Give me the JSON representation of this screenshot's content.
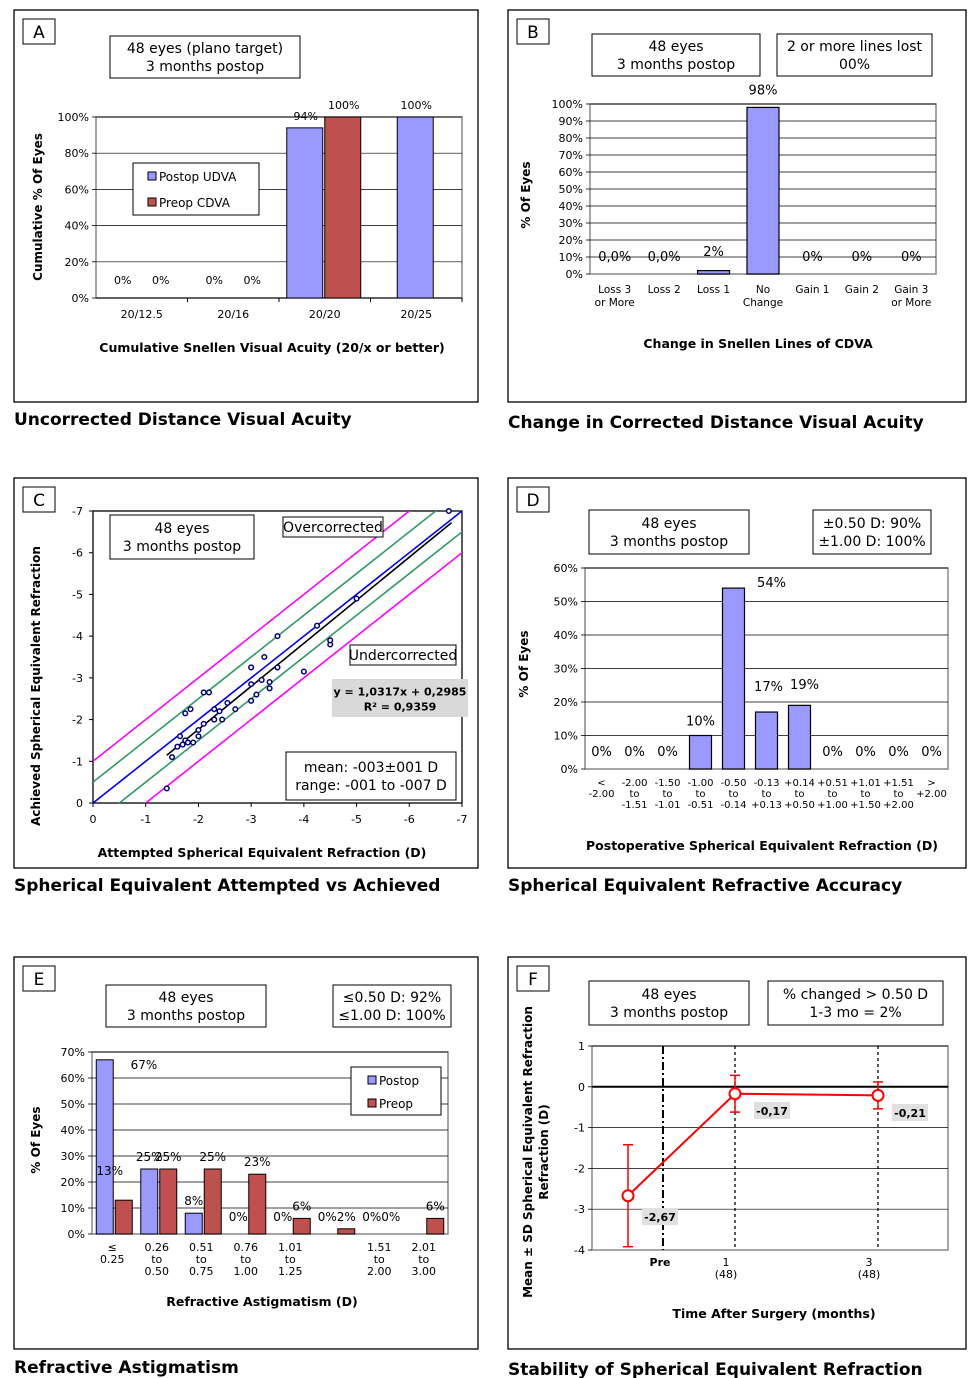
{
  "colors": {
    "blue": "#9999ff",
    "red": "#c0504d",
    "magenta": "#ff00ff",
    "green": "#339966",
    "line_blue": "#0000ff",
    "red_line": "#ff0000"
  },
  "panels": [
    {
      "letter": "A",
      "caption": "Uncorrected Distance Visual Acuity",
      "boxes": [
        {
          "lines": [
            "48 eyes (plano target)",
            "3 months postop"
          ]
        }
      ],
      "legend": [
        "Postop UDVA",
        "Preop CDVA"
      ]
    },
    {
      "letter": "B",
      "caption": "Change in Corrected Distance Visual Acuity",
      "boxes": [
        {
          "lines": [
            "48 eyes",
            "3 months postop"
          ]
        },
        {
          "lines": [
            "2 or more lines lost",
            "00%"
          ]
        }
      ]
    },
    {
      "letter": "C",
      "caption": "Spherical Equivalent Attempted vs Achieved",
      "boxes": [
        {
          "lines": [
            "48 eyes",
            "3 months postop"
          ]
        },
        {
          "lines": [
            "Overcorrected"
          ]
        },
        {
          "lines": [
            "Undercorrected"
          ]
        },
        {
          "lines": [
            "mean: -003±001 D",
            "range: -001 to -007 D"
          ]
        },
        {
          "lines": [
            "y = 1,0317x + 0,2985",
            "R² = 0,9359"
          ]
        }
      ]
    },
    {
      "letter": "D",
      "caption": "Spherical Equivalent Refractive Accuracy",
      "boxes": [
        {
          "lines": [
            "48 eyes",
            "3 months postop"
          ]
        },
        {
          "lines": [
            "±0.50 D: 90%",
            "±1.00 D: 100%"
          ]
        }
      ]
    },
    {
      "letter": "E",
      "caption": "Refractive Astigmatism",
      "boxes": [
        {
          "lines": [
            "48 eyes",
            "3 months postop"
          ]
        },
        {
          "lines": [
            "≤0.50 D: 92%",
            "≤1.00 D: 100%"
          ]
        }
      ],
      "legend": [
        "Postop",
        "Preop"
      ]
    },
    {
      "letter": "F",
      "caption": "Stability of Spherical Equivalent Refraction",
      "boxes": [
        {
          "lines": [
            "48 eyes",
            "3 months postop"
          ]
        },
        {
          "lines": [
            "% changed > 0.50 D",
            "1-3 mo = 2%"
          ]
        }
      ]
    }
  ],
  "chart_data": [
    {
      "type": "bar",
      "ylabel": "Cumulative % Of Eyes",
      "xlabel": "Cumulative Snellen Visual Acuity (20/x or better)",
      "ylim": [
        0,
        100
      ],
      "yticks": [
        "0%",
        "20%",
        "40%",
        "60%",
        "80%",
        "100%"
      ],
      "categories": [
        "20/12.5",
        "20/16",
        "20/20",
        "20/25"
      ],
      "series": [
        {
          "name": "Postop UDVA",
          "values": [
            0,
            0,
            94,
            100
          ],
          "labels": [
            "0%",
            "0%",
            "94%",
            "100%"
          ]
        },
        {
          "name": "Preop CDVA",
          "values": [
            0,
            0,
            100,
            null
          ],
          "labels": [
            "0%",
            "0%",
            "100%",
            ""
          ]
        }
      ]
    },
    {
      "type": "bar",
      "ylabel": "% Of Eyes",
      "xlabel": "Change in Snellen Lines of CDVA",
      "ylim": [
        0,
        100
      ],
      "yticks": [
        "0%",
        "10%",
        "20%",
        "30%",
        "40%",
        "50%",
        "60%",
        "70%",
        "80%",
        "90%",
        "100%"
      ],
      "categories": [
        [
          "Loss 3",
          "or More"
        ],
        [
          "Loss 2"
        ],
        [
          "Loss 1"
        ],
        [
          "No",
          "Change"
        ],
        [
          "Gain 1"
        ],
        [
          "Gain 2"
        ],
        [
          "Gain 3",
          "or More"
        ]
      ],
      "values": [
        0,
        0,
        2,
        98,
        0,
        0,
        0
      ],
      "labels": [
        "0,0%",
        "0,0%",
        "2%",
        "98%",
        "0%",
        "0%",
        "0%"
      ]
    },
    {
      "type": "scatter",
      "ylabel": "Achieved Spherical Equivalent Refraction",
      "xlabel": "Attempted Spherical Equivalent Refraction (D)",
      "xlim": [
        0,
        -7
      ],
      "ylim": [
        0,
        -7
      ],
      "xticks": [
        "0",
        "-1",
        "-2",
        "-3",
        "-4",
        "-5",
        "-6",
        "-7"
      ],
      "yticks": [
        "0",
        "-1",
        "-2",
        "-3",
        "-4",
        "-5",
        "-6",
        "-7"
      ],
      "points": [
        [
          -1.4,
          -0.35
        ],
        [
          -1.5,
          -1.1
        ],
        [
          -1.6,
          -1.35
        ],
        [
          -1.65,
          -1.6
        ],
        [
          -1.7,
          -1.4
        ],
        [
          -1.75,
          -1.5
        ],
        [
          -1.8,
          -1.45
        ],
        [
          -1.75,
          -2.15
        ],
        [
          -1.85,
          -2.25
        ],
        [
          -1.9,
          -1.45
        ],
        [
          -2.0,
          -1.6
        ],
        [
          -2.0,
          -1.75
        ],
        [
          -2.1,
          -1.9
        ],
        [
          -2.1,
          -2.65
        ],
        [
          -2.2,
          -2.65
        ],
        [
          -2.3,
          -2.25
        ],
        [
          -2.3,
          -2.0
        ],
        [
          -2.4,
          -2.2
        ],
        [
          -2.45,
          -2.0
        ],
        [
          -2.55,
          -2.4
        ],
        [
          -2.7,
          -2.25
        ],
        [
          -3.0,
          -2.45
        ],
        [
          -3.0,
          -2.85
        ],
        [
          -3.0,
          -3.25
        ],
        [
          -3.1,
          -2.6
        ],
        [
          -3.2,
          -2.95
        ],
        [
          -3.25,
          -3.5
        ],
        [
          -3.35,
          -2.75
        ],
        [
          -3.35,
          -2.9
        ],
        [
          -3.5,
          -3.25
        ],
        [
          -3.5,
          -4.0
        ],
        [
          -4.0,
          -3.15
        ],
        [
          -4.25,
          -4.25
        ],
        [
          -4.5,
          -3.8
        ],
        [
          -4.5,
          -3.9
        ],
        [
          -5.0,
          -4.9
        ],
        [
          -6.75,
          -7.0
        ]
      ],
      "regression": {
        "slope": 1.0317,
        "intercept": 0.2985
      }
    },
    {
      "type": "bar",
      "ylabel": "% Of Eyes",
      "xlabel": "Postoperative Spherical Equivalent Refraction (D)",
      "ylim": [
        0,
        60
      ],
      "yticks": [
        "0%",
        "10%",
        "20%",
        "30%",
        "40%",
        "50%",
        "60%"
      ],
      "categories": [
        [
          "<",
          "-2.00"
        ],
        [
          "-2.00",
          "to",
          "-1.51"
        ],
        [
          "-1.50",
          "to",
          "-1.01"
        ],
        [
          "-1.00",
          "to",
          "-0.51"
        ],
        [
          "-0.50",
          "to",
          "-0.14"
        ],
        [
          "-0.13",
          "to",
          "+0.13"
        ],
        [
          "+0.14",
          "to",
          "+0.50"
        ],
        [
          "+0.51",
          "to",
          "+1.00"
        ],
        [
          "+1.01",
          "to",
          "+1.50"
        ],
        [
          "+1.51",
          "to",
          "+2.00"
        ],
        [
          ">",
          "+2.00"
        ]
      ],
      "values": [
        0,
        0,
        0,
        10,
        54,
        17,
        19,
        0,
        0,
        0,
        0
      ],
      "labels": [
        "0%",
        "0%",
        "0%",
        "10%",
        "54%",
        "17%",
        "19%",
        "0%",
        "0%",
        "0%",
        "0%"
      ]
    },
    {
      "type": "bar",
      "ylabel": "% Of Eyes",
      "xlabel": "Refractive Astigmatism (D)",
      "ylim": [
        0,
        70
      ],
      "yticks": [
        "0%",
        "10%",
        "20%",
        "30%",
        "40%",
        "50%",
        "60%",
        "70%"
      ],
      "categories": [
        [
          "≤",
          "0.25"
        ],
        [
          "0.26",
          "to",
          "0.50"
        ],
        [
          "0.51",
          "to",
          "0.75"
        ],
        [
          "0.76",
          "to",
          "1.00"
        ],
        [
          "1.01",
          "to",
          "1.25"
        ],
        [],
        [
          "1.51",
          "to",
          "2.00"
        ],
        [
          "2.01",
          "to",
          "3.00"
        ]
      ],
      "series": [
        {
          "name": "Postop",
          "values": [
            67,
            25,
            8,
            0,
            0,
            0,
            0,
            0
          ],
          "labels": [
            "67%",
            "25%",
            "8%",
            "0%",
            "0%",
            "0%",
            "0%",
            ""
          ]
        },
        {
          "name": "Preop",
          "values": [
            13,
            25,
            25,
            23,
            6,
            2,
            0,
            6
          ],
          "labels": [
            "13%",
            "25%",
            "25%",
            "23%",
            "6%",
            "2%",
            "0%",
            "6%"
          ]
        }
      ]
    },
    {
      "type": "line",
      "ylabel": "Mean ± SD Spherical Equivalent Refraction (D)",
      "xlabel": "Time After Surgery (months)",
      "ylim": [
        -4,
        1
      ],
      "yticks": [
        "-4",
        "-3",
        "-2",
        "-1",
        "0",
        "1"
      ],
      "categories": [
        [
          "Pre"
        ],
        [
          "1",
          "(48)"
        ],
        [
          "3",
          "(48)"
        ]
      ],
      "values": [
        -2.67,
        -0.17,
        -0.21
      ],
      "sd": [
        1.25,
        0.45,
        0.33
      ],
      "labels": [
        "-2,67",
        "-0,17",
        "-0,21"
      ]
    }
  ]
}
